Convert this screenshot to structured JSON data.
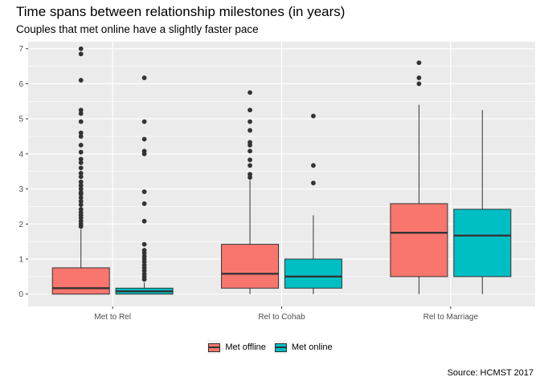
{
  "title": "Time spans between relationship milestones (in years)",
  "subtitle": "Couples that met online have a slightly faster pace",
  "caption": "Source: HCMST 2017",
  "chart_data": {
    "type": "boxplot",
    "categories": [
      "Met to Rel",
      "Rel to Cohab",
      "Rel to Marriage"
    ],
    "ylim": [
      -0.35,
      7.2
    ],
    "yticks": [
      0,
      1,
      2,
      3,
      4,
      5,
      6,
      7
    ],
    "grid": true,
    "legend_position": "bottom",
    "series": [
      {
        "name": "Met offline",
        "color": "#F8766D",
        "boxes": [
          {
            "category": "Met to Rel",
            "whisker_low": 0,
            "q1": 0,
            "median": 0.17,
            "q3": 0.75,
            "whisker_high": 1.85,
            "outliers": [
              7.0,
              6.85,
              6.1,
              5.25,
              5.15,
              4.92,
              4.6,
              4.5,
              4.25,
              4.05,
              3.85,
              3.75,
              3.6,
              3.45,
              3.35,
              3.2,
              3.1,
              3.0,
              2.9,
              2.85,
              2.75,
              2.65,
              2.55,
              2.42,
              2.33,
              2.25,
              2.17,
              2.08,
              2.0,
              1.93
            ]
          },
          {
            "category": "Rel to Cohab",
            "whisker_low": 0,
            "q1": 0.17,
            "median": 0.58,
            "q3": 1.42,
            "whisker_high": 3.25,
            "outliers": [
              5.75,
              5.25,
              4.92,
              4.67,
              4.33,
              4.25,
              4.08,
              3.83,
              3.67,
              3.42,
              3.33
            ]
          },
          {
            "category": "Rel to Marriage",
            "whisker_low": 0,
            "q1": 0.5,
            "median": 1.75,
            "q3": 2.58,
            "whisker_high": 5.4,
            "outliers": [
              6.6,
              6.17,
              6.0
            ]
          }
        ]
      },
      {
        "name": "Met online",
        "color": "#00BFC4",
        "boxes": [
          {
            "category": "Met to Rel",
            "whisker_low": 0,
            "q1": 0.0,
            "median": 0.08,
            "q3": 0.17,
            "whisker_high": 0.33,
            "outliers": [
              6.17,
              4.92,
              4.42,
              4.08,
              4.0,
              2.92,
              2.58,
              2.08,
              1.42,
              1.25,
              1.17,
              1.08,
              1.0,
              0.92,
              0.83,
              0.75,
              0.67,
              0.58,
              0.5,
              0.42
            ]
          },
          {
            "category": "Rel to Cohab",
            "whisker_low": 0,
            "q1": 0.17,
            "median": 0.5,
            "q3": 1.0,
            "whisker_high": 2.25,
            "outliers": [
              5.08,
              3.67,
              3.17
            ]
          },
          {
            "category": "Rel to Marriage",
            "whisker_low": 0,
            "q1": 0.5,
            "median": 1.67,
            "q3": 2.42,
            "whisker_high": 5.25,
            "outliers": []
          }
        ]
      }
    ]
  }
}
